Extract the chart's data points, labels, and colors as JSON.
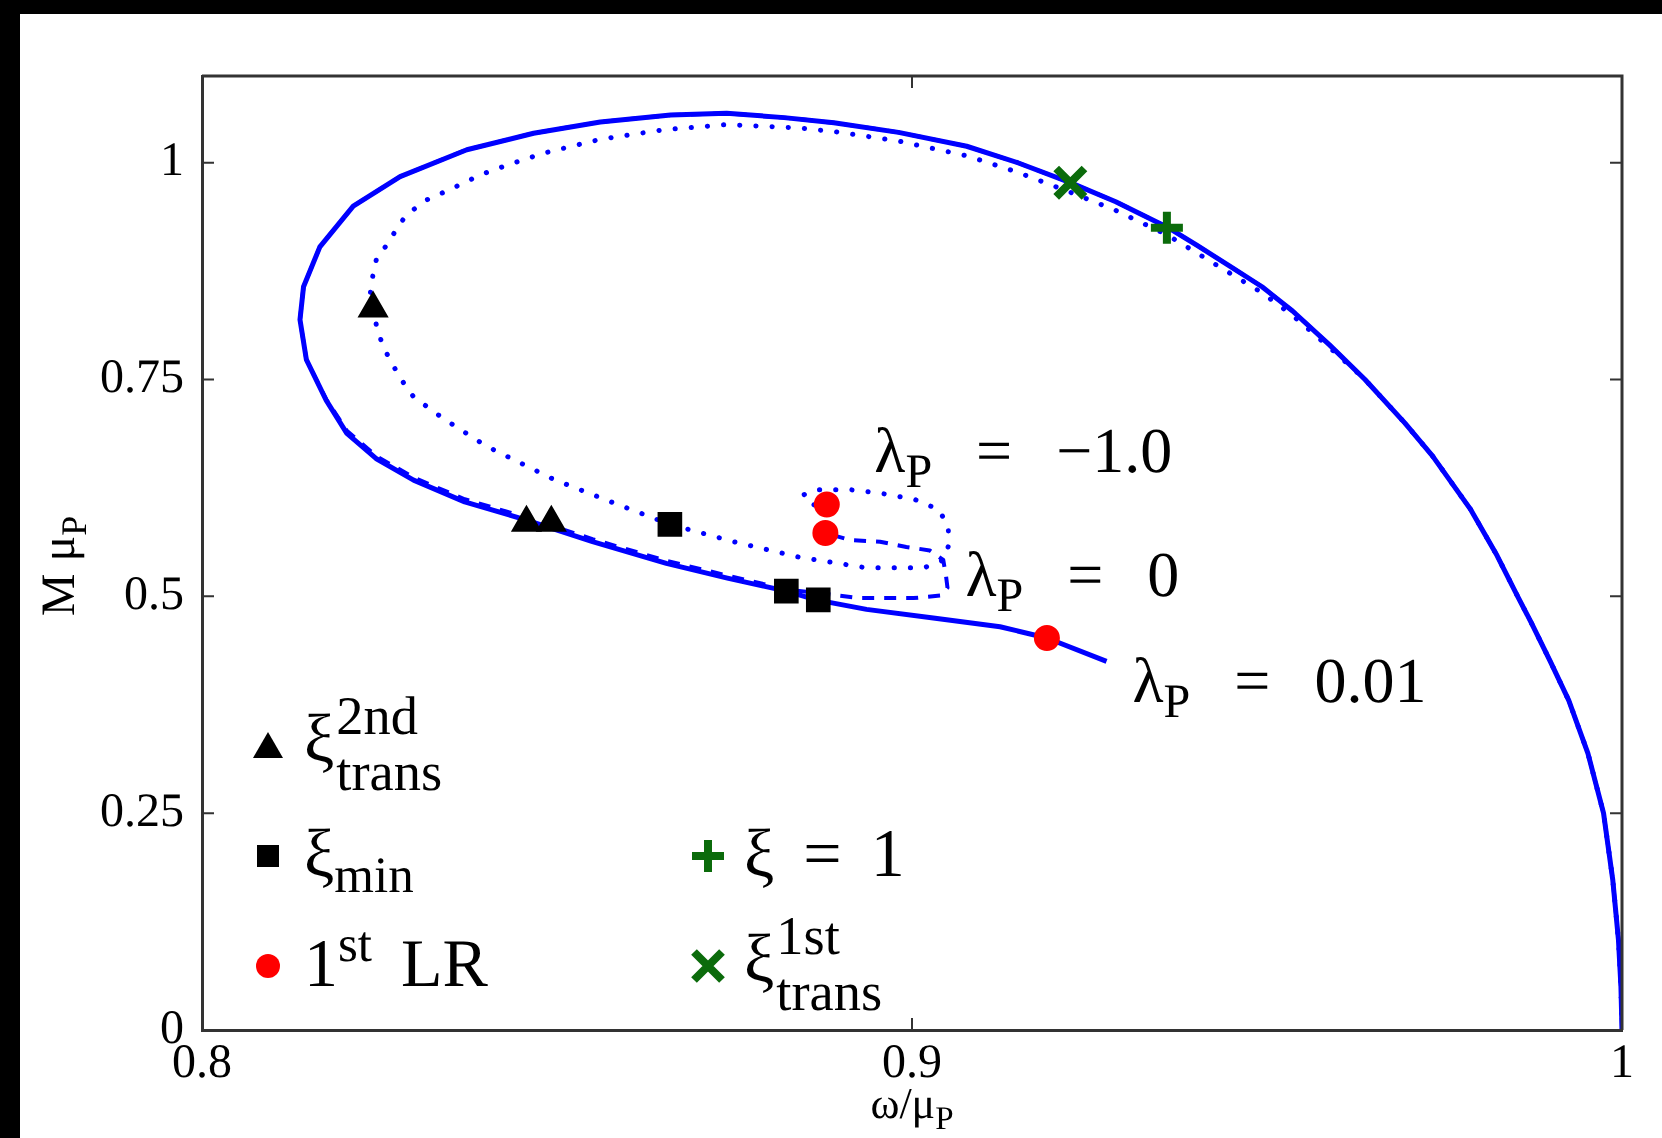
{
  "chart_data": {
    "type": "line",
    "xlabel": "ω/μ$_{P}$",
    "ylabel": "M μ$_{P}$",
    "xlim": [
      0.8,
      1
    ],
    "ylim": [
      0,
      1.1
    ],
    "xticks": [
      0.8,
      0.9,
      1
    ],
    "yticks": [
      0,
      0.25,
      0.5,
      0.75,
      1
    ],
    "legend": "bottom left",
    "series": [
      {
        "name": "λ$_{P}$ = 0.01",
        "color": "#0000ff",
        "line_style": "solid",
        "x": [
          1.0,
          0.99985,
          0.9995,
          0.9987,
          0.9974,
          0.9952,
          0.9925,
          0.9899,
          0.9872,
          0.9853,
          0.9824,
          0.9787,
          0.9733,
          0.9694,
          0.9638,
          0.9588,
          0.9536,
          0.9493,
          0.9447,
          0.9401,
          0.9359,
          0.9287,
          0.9223,
          0.9149,
          0.9077,
          0.8981,
          0.889,
          0.882,
          0.8739,
          0.866,
          0.8561,
          0.8467,
          0.8373,
          0.8279,
          0.8213,
          0.8166,
          0.8143,
          0.8138,
          0.8147,
          0.8175,
          0.8204,
          0.8245,
          0.8298,
          0.837,
          0.8457,
          0.855,
          0.8654,
          0.874,
          0.8823,
          0.8865,
          0.8936,
          0.903,
          0.9124,
          0.919,
          0.9274
        ],
        "values": [
          0,
          0.05,
          0.104,
          0.173,
          0.25,
          0.319,
          0.38,
          0.425,
          0.47,
          0.5,
          0.547,
          0.6,
          0.662,
          0.7,
          0.75,
          0.79,
          0.829,
          0.857,
          0.881,
          0.905,
          0.926,
          0.955,
          0.977,
          1.0,
          1.019,
          1.035,
          1.046,
          1.052,
          1.057,
          1.055,
          1.047,
          1.034,
          1.015,
          0.984,
          0.95,
          0.903,
          0.857,
          0.819,
          0.773,
          0.726,
          0.688,
          0.659,
          0.634,
          0.609,
          0.588,
          0.563,
          0.538,
          0.521,
          0.506,
          0.496,
          0.485,
          0.475,
          0.465,
          0.452,
          0.425
        ]
      },
      {
        "name": "λ$_{P}$ = 0",
        "color": "#0000ff",
        "line_style": "dashed",
        "x": [
          1.0,
          0.99985,
          0.9995,
          0.9987,
          0.9974,
          0.9952,
          0.9925,
          0.9899,
          0.9872,
          0.9853,
          0.9824,
          0.9787,
          0.9733,
          0.9694,
          0.9638,
          0.9588,
          0.9536,
          0.9493,
          0.9447,
          0.9401,
          0.9359,
          0.9287,
          0.9223,
          0.9149,
          0.9077,
          0.8981,
          0.889,
          0.882,
          0.8739,
          0.866,
          0.8561,
          0.8467,
          0.8373,
          0.8279,
          0.8213,
          0.8166,
          0.8143,
          0.8138,
          0.8147,
          0.8175,
          0.8204,
          0.8245,
          0.8298,
          0.837,
          0.8457,
          0.855,
          0.8654,
          0.874,
          0.8823,
          0.8927,
          0.9002,
          0.904,
          0.905,
          0.9048,
          0.9044,
          0.9025,
          0.8992,
          0.8955,
          0.8913,
          0.8878
        ],
        "values": [
          0,
          0.05,
          0.104,
          0.173,
          0.25,
          0.319,
          0.38,
          0.425,
          0.47,
          0.5,
          0.547,
          0.6,
          0.662,
          0.7,
          0.75,
          0.79,
          0.829,
          0.857,
          0.881,
          0.905,
          0.926,
          0.955,
          0.977,
          1.0,
          1.019,
          1.035,
          1.046,
          1.052,
          1.057,
          1.055,
          1.047,
          1.034,
          1.015,
          0.984,
          0.95,
          0.903,
          0.857,
          0.819,
          0.773,
          0.727,
          0.691,
          0.662,
          0.637,
          0.612,
          0.591,
          0.566,
          0.541,
          0.524,
          0.508,
          0.498,
          0.498,
          0.501,
          0.51,
          0.523,
          0.542,
          0.553,
          0.557,
          0.563,
          0.565,
          0.573
        ]
      },
      {
        "name": "λ$_{P}$ = −1.0",
        "color": "#0000ff",
        "line_style": "dotted",
        "x": [
          1.0,
          0.99985,
          0.9995,
          0.9987,
          0.9974,
          0.9952,
          0.9925,
          0.9899,
          0.9872,
          0.9853,
          0.9824,
          0.9787,
          0.9733,
          0.9694,
          0.9638,
          0.9588,
          0.9536,
          0.9493,
          0.9447,
          0.9401,
          0.9359,
          0.9287,
          0.9223,
          0.9149,
          0.9077,
          0.8981,
          0.889,
          0.8842,
          0.8739,
          0.865,
          0.8561,
          0.8481,
          0.8429,
          0.8392,
          0.8349,
          0.8316,
          0.8288,
          0.8275,
          0.8262,
          0.8246,
          0.8241,
          0.8237,
          0.8241,
          0.8246,
          0.8255,
          0.827,
          0.8284,
          0.8298,
          0.834,
          0.8401,
          0.8495,
          0.8579,
          0.8659,
          0.8749,
          0.8842,
          0.8935,
          0.9017,
          0.9045,
          0.9052,
          0.9051,
          0.9038,
          0.9003,
          0.8955,
          0.8913,
          0.8866,
          0.8847,
          0.8856,
          0.8885
        ],
        "values": [
          0,
          0.05,
          0.104,
          0.173,
          0.25,
          0.319,
          0.38,
          0.425,
          0.47,
          0.5,
          0.547,
          0.6,
          0.662,
          0.7,
          0.75,
          0.787,
          0.824,
          0.85,
          0.873,
          0.896,
          0.917,
          0.945,
          0.966,
          0.989,
          1.008,
          1.025,
          1.036,
          1.04,
          1.044,
          1.038,
          1.027,
          1.011,
          0.997,
          0.986,
          0.969,
          0.957,
          0.94,
          0.925,
          0.907,
          0.89,
          0.872,
          0.849,
          0.832,
          0.811,
          0.788,
          0.765,
          0.746,
          0.73,
          0.705,
          0.673,
          0.635,
          0.608,
          0.583,
          0.563,
          0.545,
          0.533,
          0.533,
          0.542,
          0.56,
          0.58,
          0.6,
          0.612,
          0.619,
          0.623,
          0.623,
          0.617,
          0.607,
          0.6
        ]
      },
      {
        "name": "ξ$^{2nd}$$_{trans}$",
        "type": "scatter",
        "color": "#000000",
        "marker": "triangle",
        "x": [
          0.8241,
          0.8457,
          0.8492
        ],
        "values": [
          0.832,
          0.585,
          0.585
        ]
      },
      {
        "name": "ξ$_{min}$",
        "type": "scatter",
        "color": "#000000",
        "marker": "square",
        "x": [
          0.8659,
          0.8823,
          0.8868
        ],
        "values": [
          0.583,
          0.506,
          0.496
        ]
      },
      {
        "name": "1$^{st}$ LR",
        "type": "scatter",
        "color": "#ff0000",
        "marker": "circle",
        "x": [
          0.888,
          0.8878,
          0.919
        ],
        "values": [
          0.606,
          0.573,
          0.452
        ]
      },
      {
        "name": "ξ = 1",
        "type": "scatter",
        "color": "#0b6b0b",
        "marker": "cross",
        "x": [
          0.9359
        ],
        "values": [
          0.925
        ]
      },
      {
        "name": "ξ$^{1st}$$_{trans}$",
        "type": "scatter",
        "color": "#0b6b0b",
        "marker": "x",
        "x": [
          0.9223
        ],
        "values": [
          0.977
        ]
      }
    ]
  }
}
